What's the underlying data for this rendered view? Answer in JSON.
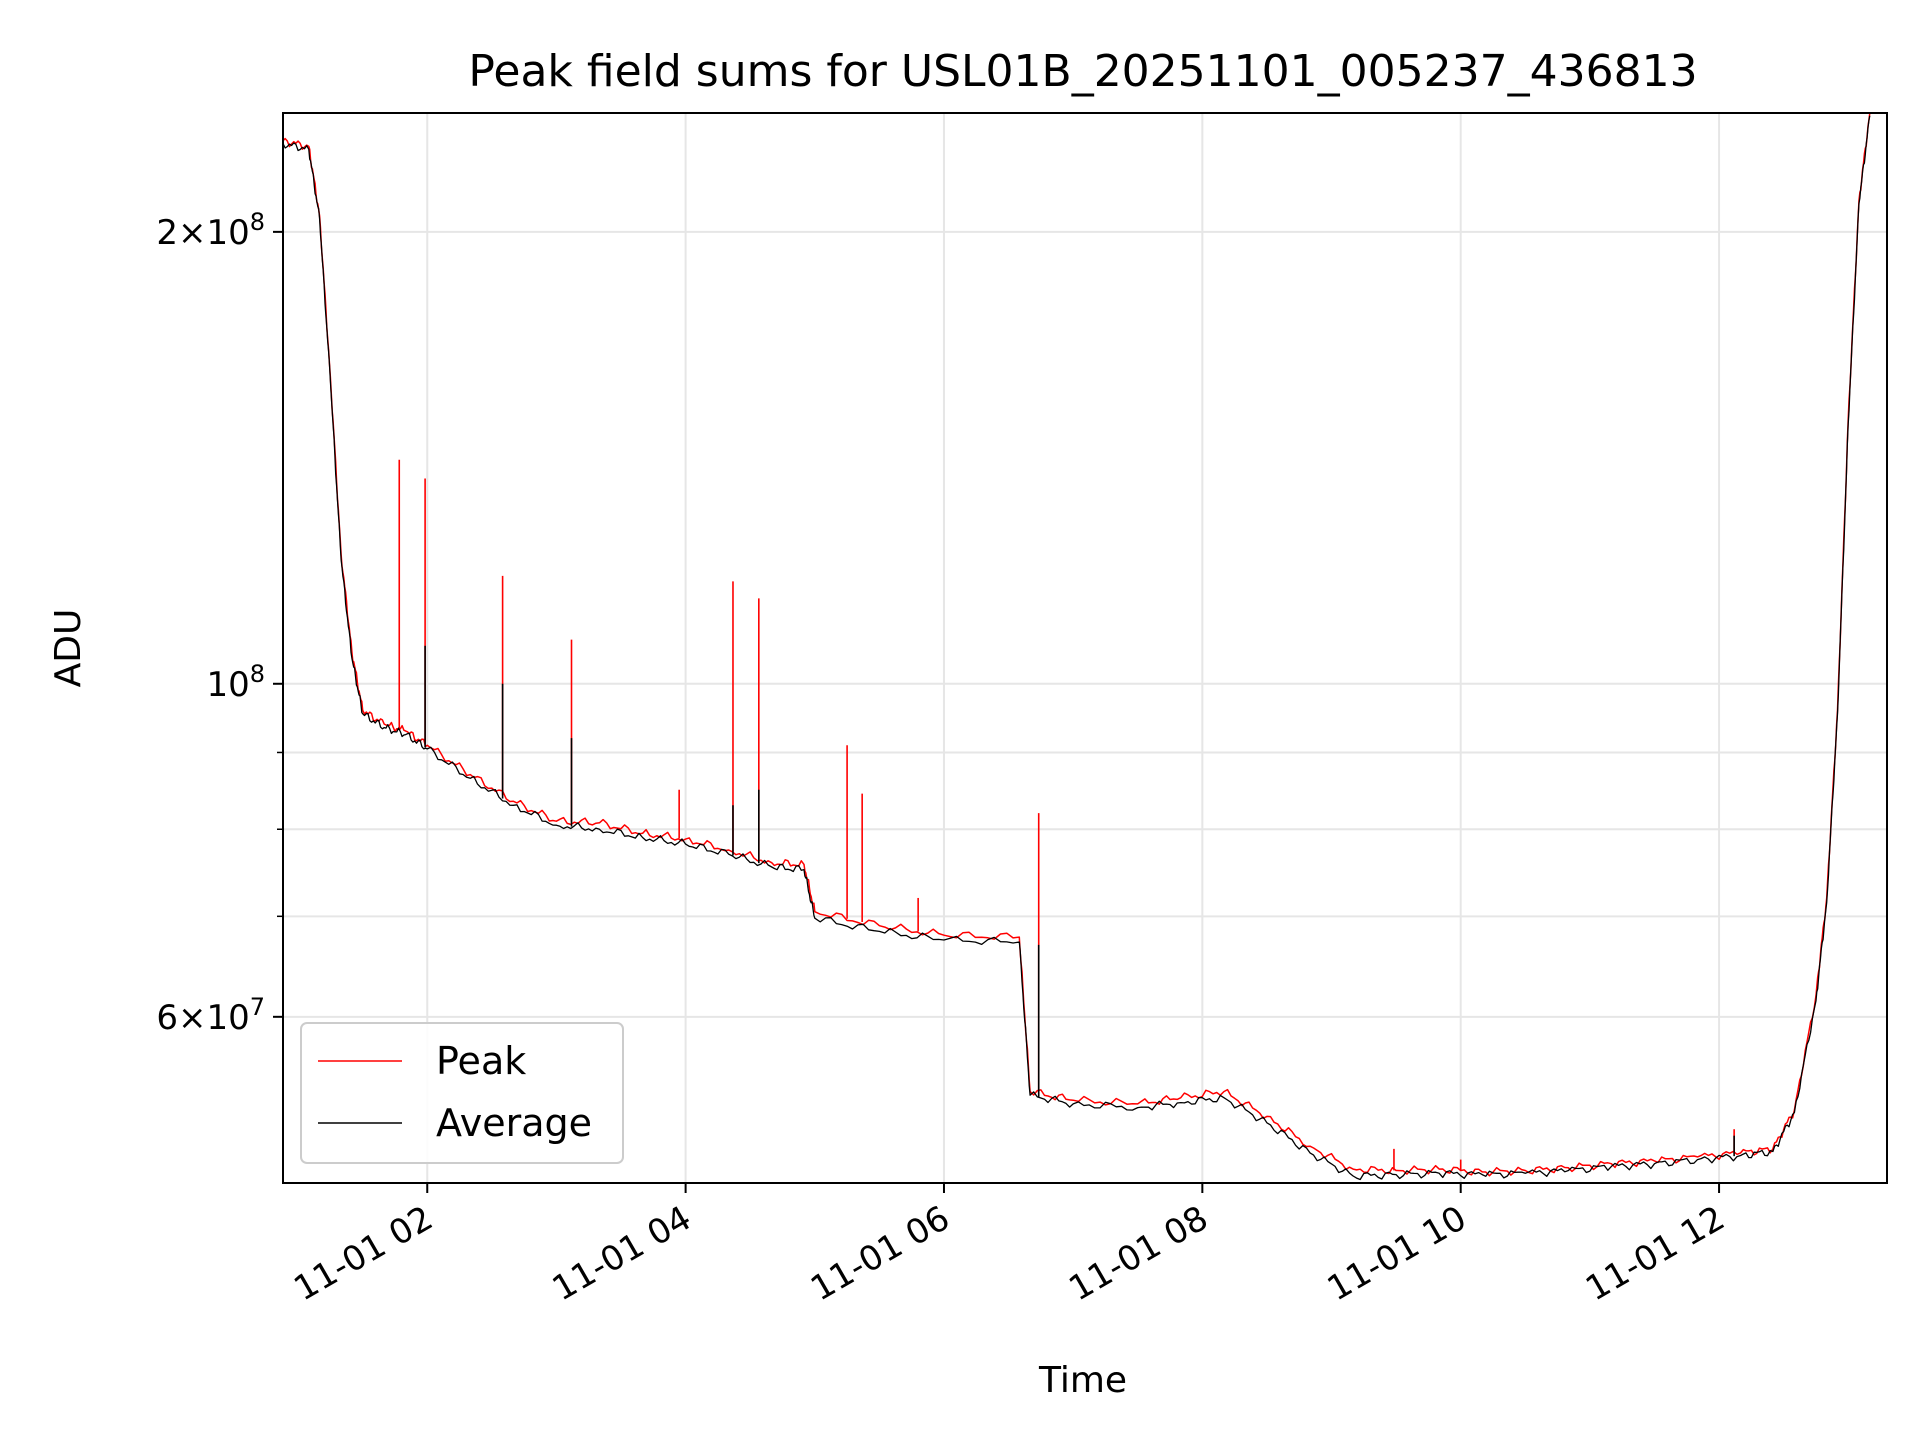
{
  "chart_data": {
    "type": "line",
    "title": "Peak field sums for USL01B_20251101_005237_436813",
    "xlabel": "Time",
    "ylabel": "ADU",
    "yscale": "log",
    "xlim": [
      "11-01 00:53",
      "11-01 13:18"
    ],
    "ylim": [
      46500000,
      240000000
    ],
    "x_ticks": [
      "11-01 02",
      "11-01 04",
      "11-01 06",
      "11-01 08",
      "11-01 10",
      "11-01 12"
    ],
    "y_tick_labels": [
      {
        "value": 200000000,
        "mantissa": "2",
        "exponent": "8",
        "times": true
      },
      {
        "value": 100000000,
        "mantissa": "",
        "exponent": "8",
        "times": false
      },
      {
        "value": 60000000,
        "mantissa": "6",
        "exponent": "7",
        "times": true
      }
    ],
    "y_minor_ticks": [
      70000000,
      80000000,
      90000000,
      300000000,
      400000000,
      500000000
    ],
    "grid": true,
    "legend": {
      "placement": "lower-left",
      "entries": [
        "Peak",
        "Average"
      ]
    },
    "series": [
      {
        "name": "Peak",
        "color": "#ff0000",
        "x": [
          "11-01 00:53",
          "11-01 01:05",
          "11-01 01:10",
          "11-01 01:15",
          "11-01 01:20",
          "11-01 01:25",
          "11-01 01:30",
          "11-01 01:40",
          "11-01 01:50",
          "11-01 02:00",
          "11-01 02:20",
          "11-01 02:40",
          "11-01 03:00",
          "11-01 03:20",
          "11-01 03:40",
          "11-01 04:00",
          "11-01 04:20",
          "11-01 04:40",
          "11-01 04:55",
          "11-01 05:00",
          "11-01 05:30",
          "11-01 06:00",
          "11-01 06:35",
          "11-01 06:40",
          "11-01 07:00",
          "11-01 07:30",
          "11-01 07:50",
          "11-01 08:10",
          "11-01 08:30",
          "11-01 08:50",
          "11-01 09:10",
          "11-01 09:30",
          "11-01 09:50",
          "11-01 10:10",
          "11-01 10:30",
          "11-01 10:50",
          "11-01 11:10",
          "11-01 11:30",
          "11-01 11:50",
          "11-01 12:10",
          "11-01 12:25",
          "11-01 12:35",
          "11-01 12:45",
          "11-01 12:50",
          "11-01 12:55",
          "11-01 13:00",
          "11-01 13:05",
          "11-01 13:10"
        ],
        "y": [
          230000000,
          228000000,
          205000000,
          160000000,
          122000000,
          105000000,
          96000000,
          94000000,
          93000000,
          91000000,
          87000000,
          83500000,
          81000000,
          80800000,
          79500000,
          78800000,
          77500000,
          76000000,
          75800000,
          70500000,
          69000000,
          68000000,
          67800000,
          53500000,
          52800000,
          52500000,
          53000000,
          53500000,
          51500000,
          49200000,
          47500000,
          47400000,
          47500000,
          47300000,
          47400000,
          47600000,
          47900000,
          48100000,
          48400000,
          48700000,
          49000000,
          52000000,
          62000000,
          72000000,
          96000000,
          150000000,
          210000000,
          240000000
        ],
        "spikes": [
          {
            "x": "11-01 01:47",
            "y": 141000000
          },
          {
            "x": "11-01 01:59",
            "y": 137000000
          },
          {
            "x": "11-01 02:35",
            "y": 118000000
          },
          {
            "x": "11-01 03:07",
            "y": 107000000
          },
          {
            "x": "11-01 04:22",
            "y": 117000000
          },
          {
            "x": "11-01 04:34",
            "y": 114000000
          },
          {
            "x": "11-01 03:57",
            "y": 85000000
          },
          {
            "x": "11-01 05:15",
            "y": 91000000
          },
          {
            "x": "11-01 05:22",
            "y": 84500000
          },
          {
            "x": "11-01 05:48",
            "y": 72000000
          },
          {
            "x": "11-01 06:44",
            "y": 82000000
          },
          {
            "x": "11-01 09:29",
            "y": 49000000
          },
          {
            "x": "11-01 10:00",
            "y": 48200000
          },
          {
            "x": "11-01 12:07",
            "y": 50500000
          }
        ]
      },
      {
        "name": "Average",
        "color": "#000000",
        "x": [
          "11-01 00:53",
          "11-01 01:05",
          "11-01 01:10",
          "11-01 01:15",
          "11-01 01:20",
          "11-01 01:25",
          "11-01 01:30",
          "11-01 01:40",
          "11-01 01:50",
          "11-01 02:00",
          "11-01 02:20",
          "11-01 02:40",
          "11-01 03:00",
          "11-01 03:20",
          "11-01 03:40",
          "11-01 04:00",
          "11-01 04:20",
          "11-01 04:40",
          "11-01 04:55",
          "11-01 05:00",
          "11-01 05:30",
          "11-01 06:00",
          "11-01 06:35",
          "11-01 06:40",
          "11-01 07:00",
          "11-01 07:30",
          "11-01 07:50",
          "11-01 08:10",
          "11-01 08:30",
          "11-01 08:50",
          "11-01 09:10",
          "11-01 09:30",
          "11-01 09:50",
          "11-01 10:10",
          "11-01 10:30",
          "11-01 10:50",
          "11-01 11:10",
          "11-01 11:30",
          "11-01 11:50",
          "11-01 12:10",
          "11-01 12:25",
          "11-01 12:35",
          "11-01 12:45",
          "11-01 12:50",
          "11-01 12:55",
          "11-01 13:00",
          "11-01 13:05",
          "11-01 13:10"
        ],
        "y": [
          229000000,
          227000000,
          204000000,
          159000000,
          121000000,
          104000000,
          95500000,
          93500000,
          92500000,
          90500000,
          86500000,
          83000000,
          80500000,
          80000000,
          79000000,
          78200000,
          77000000,
          75500000,
          75200000,
          69800000,
          68400000,
          67500000,
          67300000,
          53200000,
          52500000,
          52200000,
          52600000,
          53000000,
          51000000,
          48700000,
          47000000,
          47100000,
          47200000,
          47100000,
          47200000,
          47400000,
          47700000,
          47900000,
          48200000,
          48500000,
          48800000,
          51800000,
          61500000,
          71500000,
          95500000,
          149000000,
          209000000,
          239000000
        ],
        "spikes": [
          {
            "x": "11-01 01:59",
            "y": 106000000
          },
          {
            "x": "11-01 02:35",
            "y": 100000000
          },
          {
            "x": "11-01 03:07",
            "y": 92000000
          },
          {
            "x": "11-01 04:22",
            "y": 83000000
          },
          {
            "x": "11-01 04:34",
            "y": 85000000
          },
          {
            "x": "11-01 06:44",
            "y": 67000000
          },
          {
            "x": "11-01 12:07",
            "y": 50000000
          }
        ]
      }
    ]
  }
}
